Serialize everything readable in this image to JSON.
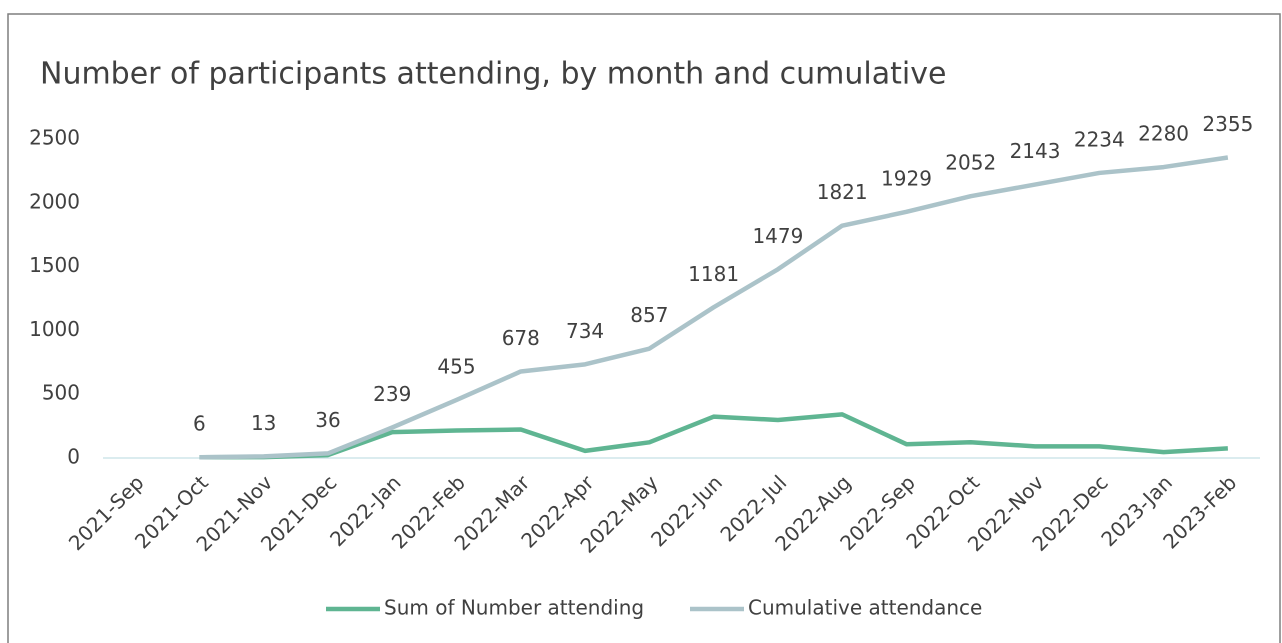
{
  "chart_data": {
    "type": "line",
    "title": "Number of participants attending, by month and cumulative",
    "categories": [
      "2021-Sep",
      "2021-Oct",
      "2021-Nov",
      "2021-Dec",
      "2022-Jan",
      "2022-Feb",
      "2022-Mar",
      "2022-Apr",
      "2022-May",
      "2022-Jun",
      "2022-Jul",
      "2022-Aug",
      "2022-Sep",
      "2022-Oct",
      "2022-Nov",
      "2022-Dec",
      "2023-Jan",
      "2023-Feb"
    ],
    "series": [
      {
        "name": "Sum of Number attending",
        "color": "#5fb592",
        "values": [
          null,
          6,
          7,
          23,
          203,
          216,
          223,
          56,
          123,
          324,
          298,
          342,
          108,
          123,
          91,
          91,
          46,
          75
        ]
      },
      {
        "name": "Cumulative attendance",
        "color": "#abc3c9",
        "values": [
          null,
          6,
          13,
          36,
          239,
          455,
          678,
          734,
          857,
          1181,
          1479,
          1821,
          1929,
          2052,
          2143,
          2234,
          2280,
          2355
        ],
        "data_labels": true
      }
    ],
    "ylim": [
      0,
      2500
    ],
    "yticks": [
      0,
      500,
      1000,
      1500,
      2000,
      2500
    ],
    "legend": "bottom"
  }
}
